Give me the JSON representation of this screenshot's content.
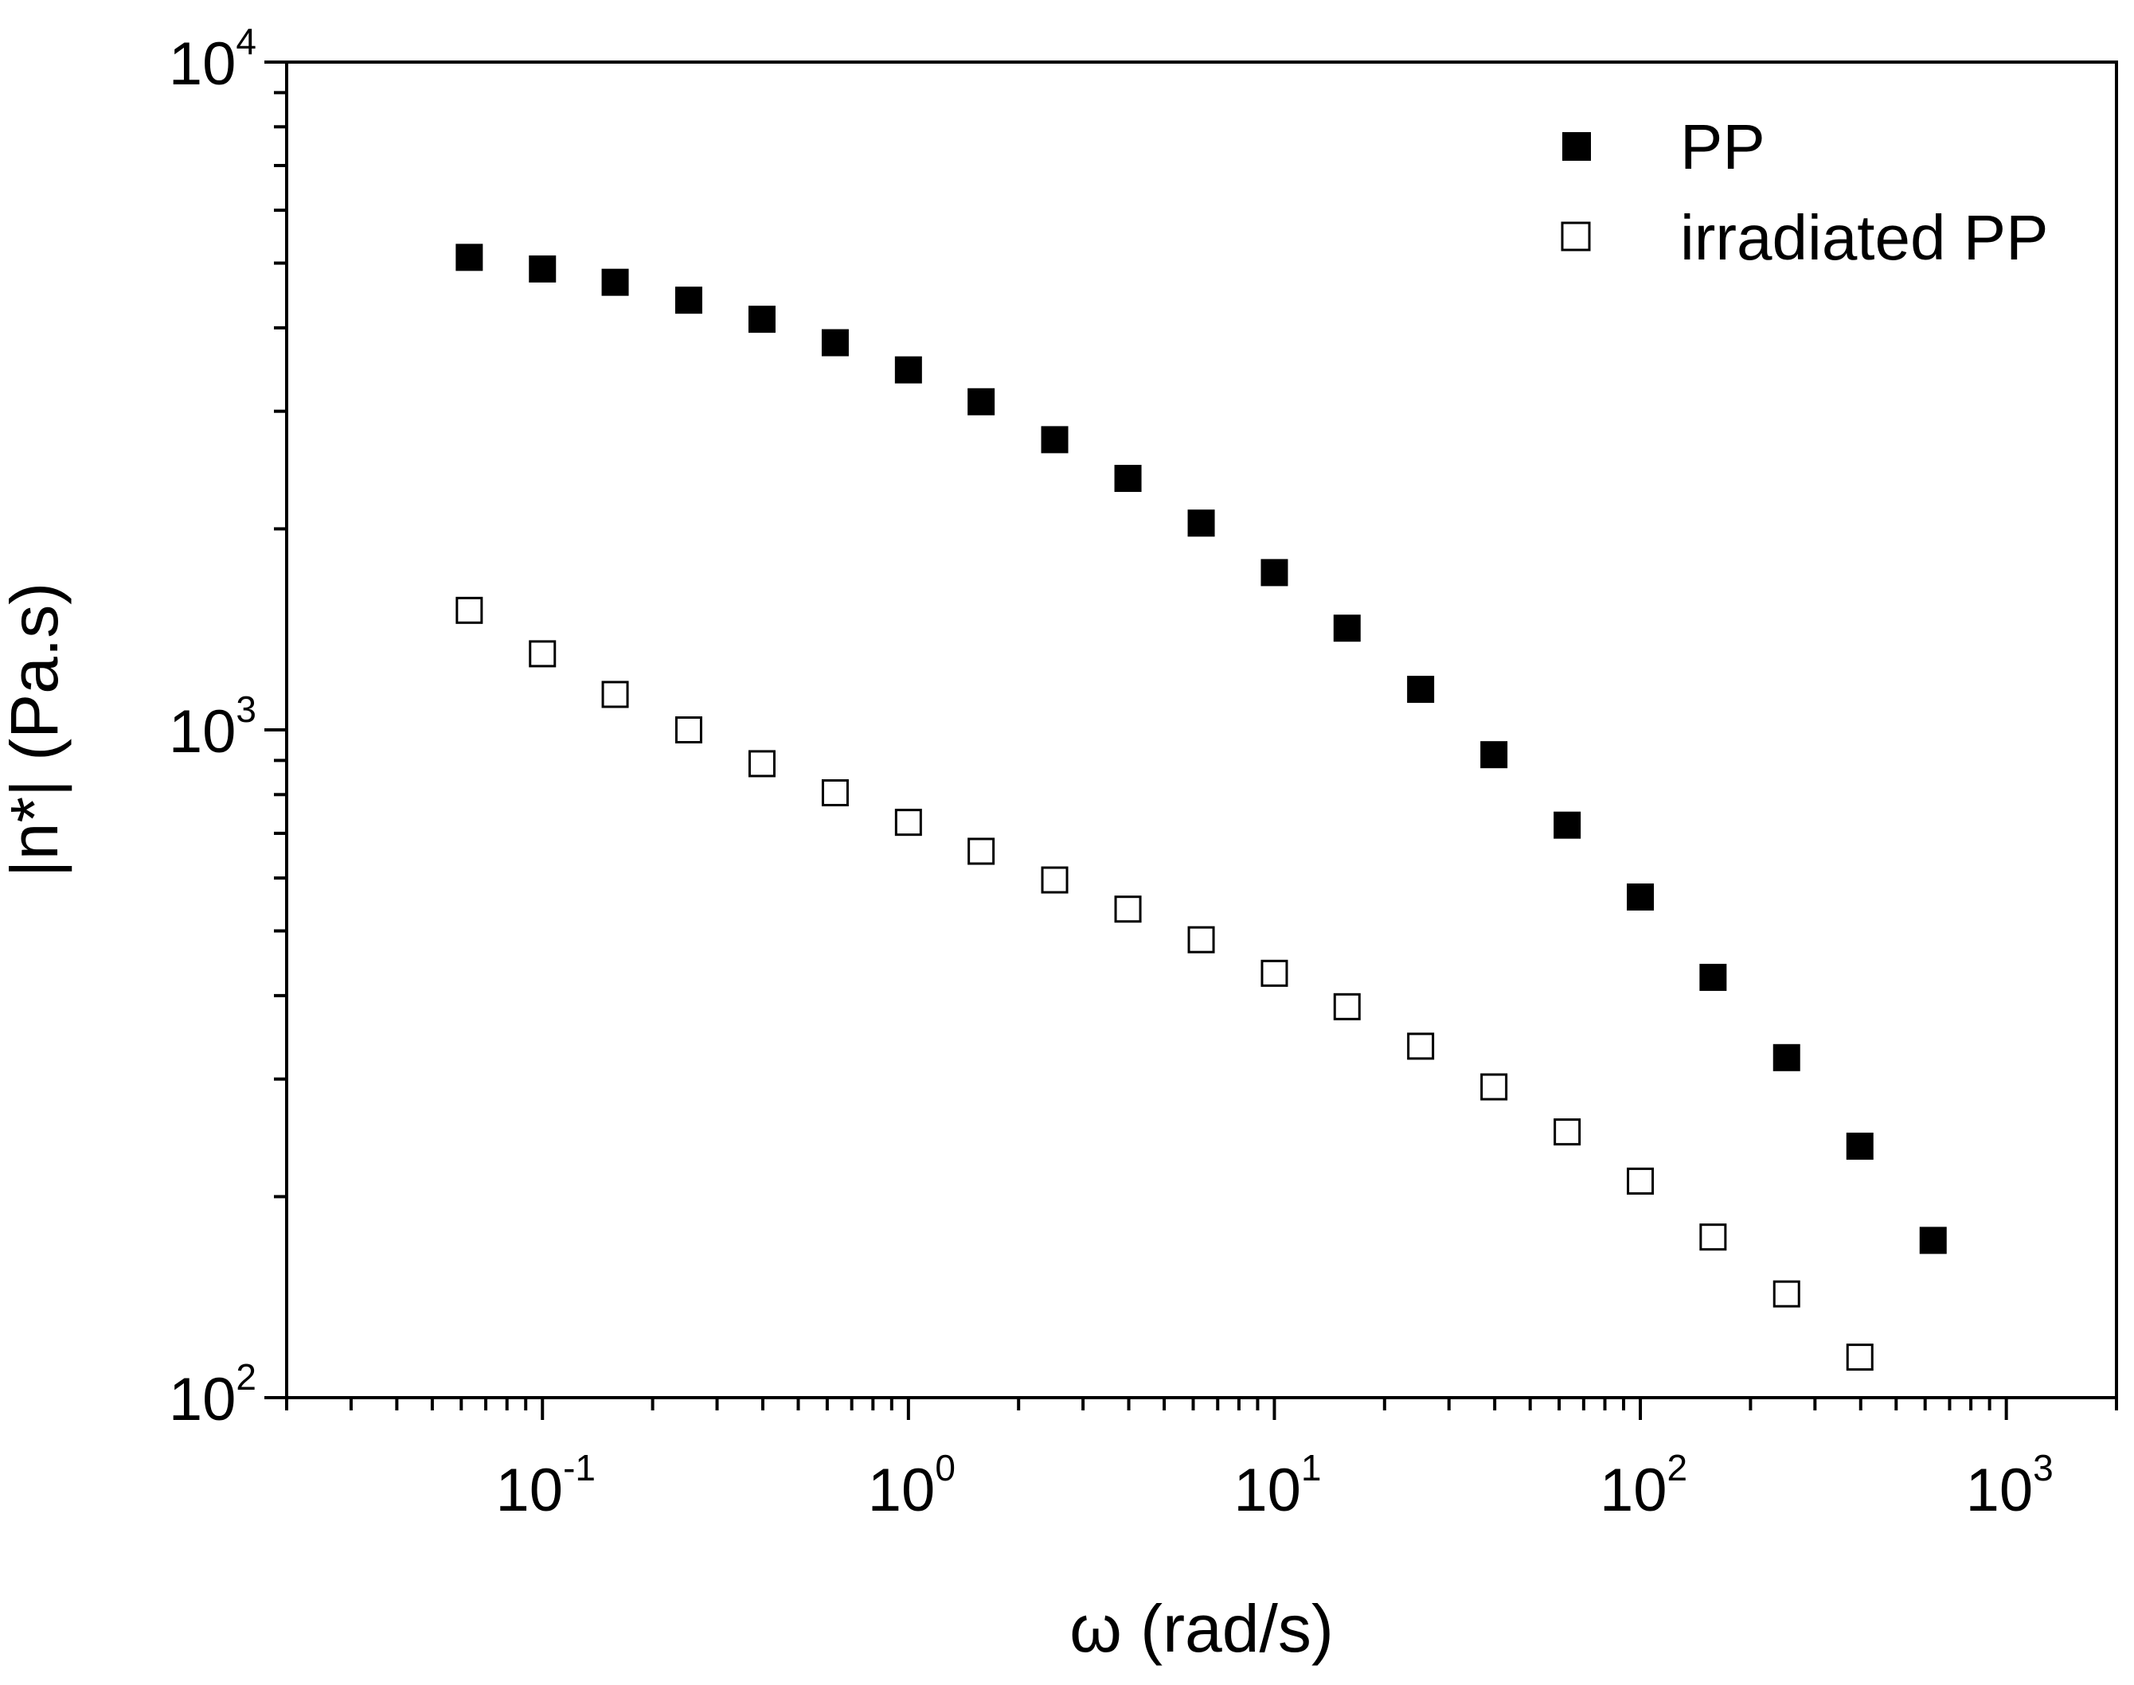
{
  "chart_data": {
    "type": "scatter",
    "title": "",
    "xlabel": "ω (rad/s)",
    "ylabel": "|n*| (Pa.s)",
    "xscale": "log",
    "yscale": "log",
    "xlim": [
      0.02,
      2000
    ],
    "ylim": [
      100,
      10000
    ],
    "x_ticks": [
      {
        "value": 0.1,
        "base": "10",
        "exp": "-1"
      },
      {
        "value": 1,
        "base": "10",
        "exp": "0"
      },
      {
        "value": 10,
        "base": "10",
        "exp": "1"
      },
      {
        "value": 100,
        "base": "10",
        "exp": "2"
      },
      {
        "value": 1000,
        "base": "10",
        "exp": "3"
      }
    ],
    "y_ticks": [
      {
        "value": 100,
        "base": "10",
        "exp": "2"
      },
      {
        "value": 1000,
        "base": "10",
        "exp": "3"
      },
      {
        "value": 10000,
        "base": "10",
        "exp": "4"
      }
    ],
    "legend_position": "top-right",
    "series": [
      {
        "name": "PP",
        "marker": "filled-square",
        "color": "#000000",
        "x": [
          0.0631,
          0.1,
          0.158,
          0.251,
          0.398,
          0.631,
          1.0,
          1.58,
          2.51,
          3.98,
          6.31,
          10.0,
          15.8,
          25.1,
          39.8,
          63.1,
          100,
          158,
          251,
          398,
          631
        ],
        "y": [
          5100,
          4900,
          4680,
          4400,
          4120,
          3800,
          3460,
          3100,
          2720,
          2380,
          2040,
          1720,
          1420,
          1150,
          918,
          720,
          562,
          426,
          323,
          238,
          172
        ]
      },
      {
        "name": "irradiated PP",
        "marker": "open-square",
        "color": "#000000",
        "x": [
          0.0631,
          0.1,
          0.158,
          0.251,
          0.398,
          0.631,
          1.0,
          1.58,
          2.51,
          3.98,
          6.31,
          10.0,
          15.8,
          25.1,
          39.8,
          63.1,
          100,
          158,
          251,
          398
        ],
        "y": [
          1510,
          1300,
          1130,
          1000,
          890,
          805,
          727,
          658,
          596,
          539,
          485,
          432,
          385,
          336,
          292,
          250,
          211,
          174,
          143,
          115
        ]
      }
    ]
  }
}
